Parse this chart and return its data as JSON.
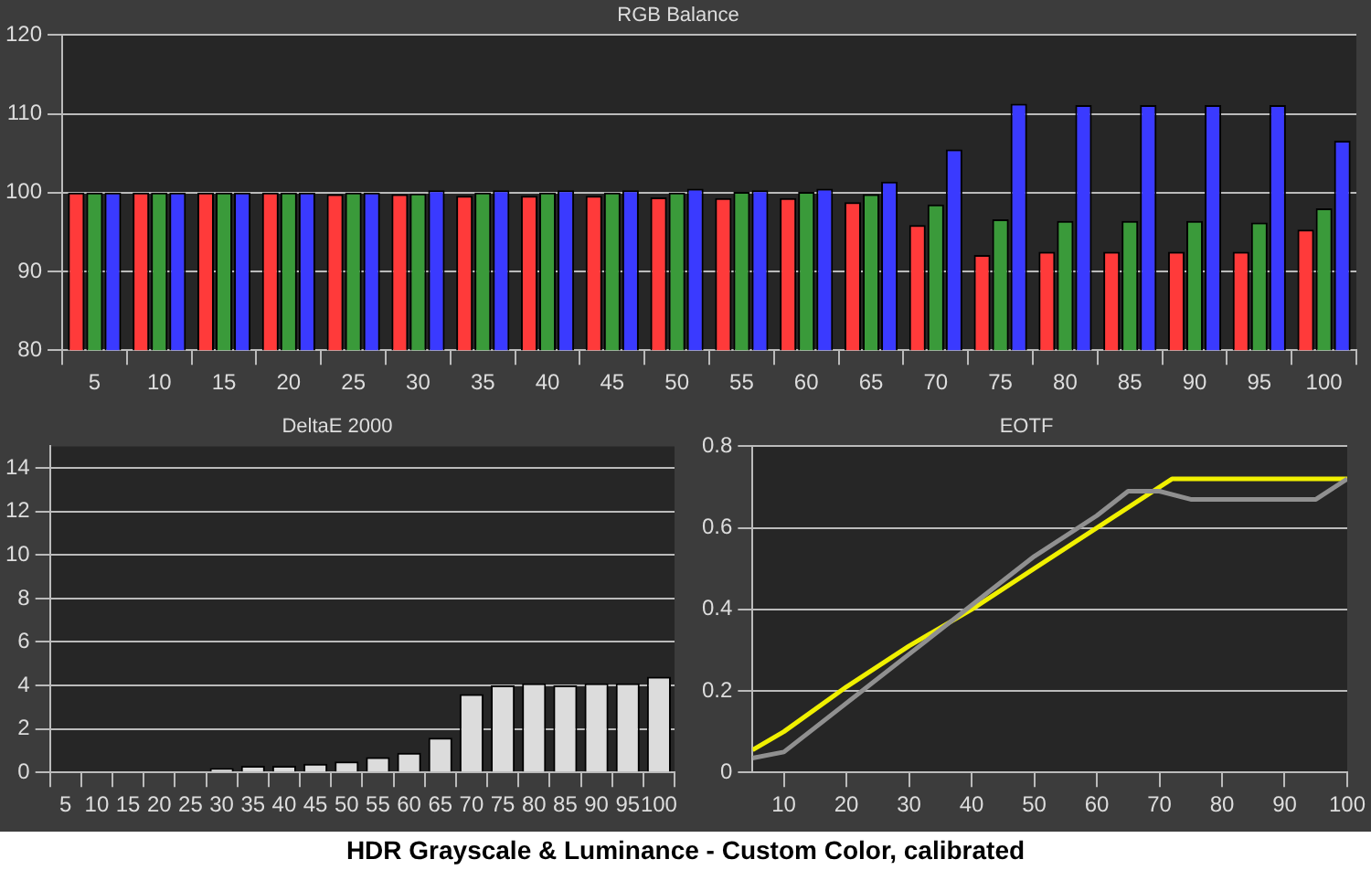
{
  "chart_data": [
    {
      "type": "bar",
      "title": "RGB Balance",
      "categories": [
        "5",
        "10",
        "15",
        "20",
        "25",
        "30",
        "35",
        "40",
        "45",
        "50",
        "55",
        "60",
        "65",
        "70",
        "75",
        "80",
        "85",
        "90",
        "95",
        "100"
      ],
      "series": [
        {
          "color": "#ff3a3a",
          "values": [
            100,
            100,
            100,
            100,
            99.8,
            99.8,
            99.6,
            99.6,
            99.6,
            99.4,
            99.3,
            99.3,
            98.8,
            95.9,
            92.1,
            92.5,
            92.5,
            92.5,
            92.5,
            95.3
          ]
        },
        {
          "color": "#3a9a3a",
          "values": [
            100,
            100,
            100,
            100,
            100,
            99.9,
            100,
            100,
            100,
            100,
            100.1,
            100.1,
            99.8,
            98.5,
            96.6,
            96.4,
            96.4,
            96.4,
            96.2,
            98
          ]
        },
        {
          "color": "#3a3aff",
          "values": [
            100,
            100,
            100,
            100,
            100,
            100.3,
            100.3,
            100.3,
            100.3,
            100.5,
            100.3,
            100.5,
            101.4,
            105.5,
            111.3,
            111.1,
            111.1,
            111.1,
            111.1,
            106.6
          ]
        }
      ],
      "ylim": [
        80,
        120
      ],
      "yticks": [
        80,
        90,
        100,
        110,
        120
      ],
      "grid": "y",
      "legend": false,
      "annotations": [
        "HDR Grayscale & Luminance - Custom Color, calibrated"
      ]
    },
    {
      "type": "bar",
      "title": "DeltaE 2000",
      "categories": [
        "5",
        "10",
        "15",
        "20",
        "25",
        "30",
        "35",
        "40",
        "45",
        "50",
        "55",
        "60",
        "65",
        "70",
        "75",
        "80",
        "85",
        "90",
        "95",
        "100"
      ],
      "series": [
        {
          "color": "#dcdcdc",
          "values": [
            0,
            0,
            0,
            0,
            0,
            0.2,
            0.3,
            0.3,
            0.4,
            0.5,
            0.7,
            0.9,
            1.6,
            3.6,
            4,
            4.1,
            4,
            4.1,
            4.1,
            4.4
          ]
        }
      ],
      "ylim": [
        0,
        15
      ],
      "yticks": [
        0,
        2,
        4,
        6,
        8,
        10,
        12,
        14
      ],
      "grid": "y",
      "legend": false
    },
    {
      "type": "line",
      "title": "EOTF",
      "series": [
        {
          "color": "#909090",
          "x": [
            5,
            10,
            20,
            30,
            40,
            50,
            60,
            65,
            70,
            75,
            80,
            90,
            95,
            100
          ],
          "values": [
            0.035,
            0.05,
            0.17,
            0.29,
            0.41,
            0.53,
            0.63,
            0.69,
            0.69,
            0.67,
            0.67,
            0.67,
            0.67,
            0.72
          ]
        },
        {
          "color": "#f0f000",
          "x": [
            5,
            10,
            20,
            30,
            40,
            50,
            60,
            72,
            80,
            90,
            100
          ],
          "values": [
            0.055,
            0.1,
            0.21,
            0.31,
            0.4,
            0.5,
            0.6,
            0.72,
            0.72,
            0.72,
            0.72
          ]
        }
      ],
      "xlim": [
        5,
        100
      ],
      "xticks": [
        10,
        20,
        30,
        40,
        50,
        60,
        70,
        80,
        90,
        100
      ],
      "ylim": [
        0,
        0.8
      ],
      "yticks": [
        0,
        0.2,
        0.4,
        0.6,
        0.8
      ],
      "grid": "y",
      "legend": false,
      "marker": "none"
    }
  ]
}
